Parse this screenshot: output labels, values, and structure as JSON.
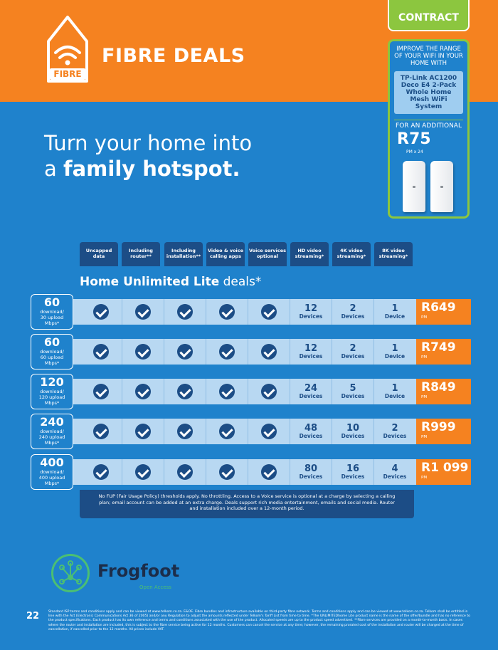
{
  "header": {
    "icon_label": "FIBRE",
    "title": "FIBRE DEALS",
    "contract_label": "CONTRACT"
  },
  "hero": {
    "line1": "Turn your home into",
    "line2_prefix": "a ",
    "line2_bold": "family hotspot."
  },
  "promo": {
    "intro": "IMPROVE THE RANGE OF YOUR WIFI IN YOUR HOME WITH",
    "product": "TP-Link AC1200 Deco E4 2-Pack Whole Home Mesh WiFi System",
    "additional": "FOR AN ADDITIONAL",
    "price": "R75",
    "terms": "PM x 24"
  },
  "features": [
    {
      "label": "Uncapped data"
    },
    {
      "label": "Including router**"
    },
    {
      "label": "Including installation**"
    },
    {
      "label": "Video & voice calling apps"
    },
    {
      "label": "Voice services optional"
    },
    {
      "label": "HD video streaming*"
    },
    {
      "label": "4K video streaming*"
    },
    {
      "label": "8K video streaming*"
    }
  ],
  "section": {
    "title_bold": "Home Unlimited Lite",
    "title_rest": " deals*"
  },
  "device_label": "Devices",
  "device_label_single": "Device",
  "price_pm": "PM",
  "deals": [
    {
      "speed": "60",
      "sub1": "download/",
      "sub2": "30 upload",
      "sub3": "Mbps*",
      "hd": "12",
      "k4": "2",
      "k8": "1",
      "k8_label": "Device",
      "price": "R649"
    },
    {
      "speed": "60",
      "sub1": "download/",
      "sub2": "60 upload",
      "sub3": "Mbps*",
      "hd": "12",
      "k4": "2",
      "k8": "1",
      "k8_label": "Device",
      "price": "R749"
    },
    {
      "speed": "120",
      "sub1": "download/",
      "sub2": "120 upload",
      "sub3": "Mbps*",
      "hd": "24",
      "k4": "5",
      "k8": "1",
      "k8_label": "Device",
      "price": "R849"
    },
    {
      "speed": "240",
      "sub1": "download/",
      "sub2": "240 upload",
      "sub3": "Mbps*",
      "hd": "48",
      "k4": "10",
      "k8": "2",
      "k8_label": "Devices",
      "price": "R999"
    },
    {
      "speed": "400",
      "sub1": "download/",
      "sub2": "400 upload",
      "sub3": "Mbps*",
      "hd": "80",
      "k4": "16",
      "k8": "4",
      "k8_label": "Devices",
      "price": "R1 099"
    }
  ],
  "fup_note": "No FUP (Fair Usage Policy) thresholds apply. No throttling. Access to a Voice service is optional at a charge by selecting a calling plan; email account can be added at an extra charge. Deals support rich media entertainment, emails and social media. Router and installation included over a 12-month period.",
  "partner": {
    "name": "Frogfoot",
    "tagline": "Open Access"
  },
  "footer": {
    "page_number": "22",
    "fine_print": "Standard ISP terms and conditions apply and can be viewed at www.telkom.co.za. E&OE. Fibre bundles and infrastructure available on third-party fibre network. Terms and conditions apply and can be viewed at www.telkom.co.za. Telkom shall be entitled in line with the Act (Electronic Communications Act 36 of 2005) and/or any Regulation to adjust the amounts reflected under Telkom's Tariff List from time to time. *The UNLIMITEDhome Lite product name is the name of the offer/bundle and has no reference to the product specifications. Each product has its own reference and terms and conditions associated with the use of the product. Allocated speeds are up to the product speed advertised. **Fibre services are provided on a month-to-month basis. In cases where the router and installation are included, this is subject to the fibre service being active for 12 months. Customers can cancel the service at any time; however, the remaining prorated cost of the installation and router will be charged at the time of cancellation, if cancelled prior to the 12 months. All prices include VAT."
  }
}
